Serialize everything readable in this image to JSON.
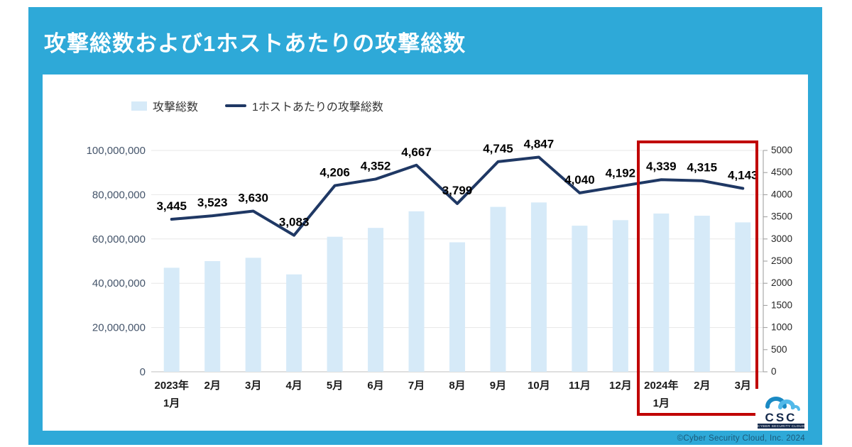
{
  "title": "攻撃総数および1ホストあたりの攻撃総数",
  "legend": {
    "bars_label": "攻撃総数",
    "line_label": "1ホストあたりの攻撃総数"
  },
  "chart_data": {
    "type": "bar+line",
    "title": "攻撃総数および1ホストあたりの攻撃総数",
    "grid": true,
    "legend_position": "top",
    "categories": [
      [
        "2023年",
        "1月"
      ],
      [
        "2月"
      ],
      [
        "3月"
      ],
      [
        "4月"
      ],
      [
        "5月"
      ],
      [
        "6月"
      ],
      [
        "7月"
      ],
      [
        "8月"
      ],
      [
        "9月"
      ],
      [
        "10月"
      ],
      [
        "11月"
      ],
      [
        "12月"
      ],
      [
        "2024年",
        "1月"
      ],
      [
        "2月"
      ],
      [
        "3月"
      ]
    ],
    "series": [
      {
        "name": "攻撃総数",
        "type": "bar",
        "axis": "left",
        "values": [
          47000000,
          50000000,
          51500000,
          44000000,
          61000000,
          65000000,
          72500000,
          58500000,
          74500000,
          76500000,
          66000000,
          68500000,
          71500000,
          70500000,
          67500000
        ]
      },
      {
        "name": "1ホストあたりの攻撃総数",
        "type": "line",
        "axis": "right",
        "values": [
          3445,
          3523,
          3630,
          3083,
          4206,
          4352,
          4667,
          3799,
          4745,
          4847,
          4040,
          4192,
          4339,
          4315,
          4143
        ]
      }
    ],
    "line_labels": [
      "3,445",
      "3,523",
      "3,630",
      "3,083",
      "4,206",
      "4,352",
      "4,667",
      "3,799",
      "4,745",
      "4,847",
      "4,040",
      "4,192",
      "4,339",
      "4,315",
      "4,143"
    ],
    "left_axis": {
      "min": 0,
      "max": 100000000,
      "step": 20000000,
      "labels": [
        "100,000,000",
        "80,000,000",
        "60,000,000",
        "40,000,000",
        "20,000,000",
        "0"
      ]
    },
    "right_axis": {
      "min": 0,
      "max": 5000,
      "step": 500,
      "labels": [
        "5000",
        "4500",
        "4000",
        "3500",
        "3000",
        "2500",
        "2000",
        "1500",
        "1000",
        "500",
        "0"
      ]
    },
    "highlight": {
      "from_category": "2024年1月",
      "to_category": "3月",
      "months": [
        "2024年1月",
        "2月",
        "3月"
      ]
    }
  },
  "footer": {
    "copyright": "©Cyber Security Cloud, Inc. 2024"
  },
  "logo": {
    "text": "CSC",
    "subtext": "CYBER SECURITY CLOUD"
  },
  "colors": {
    "panel_blue": "#2ea9d8",
    "bar_fill": "#d6eaf8",
    "line_navy": "#1f3864",
    "highlight_red": "#c00000",
    "left_axis_text": "#44546a",
    "gridline": "#e7e7e7",
    "logo_cloud_dark": "#1a8ac4",
    "logo_cloud_light": "#52b9e9",
    "logo_navy": "#14294b"
  }
}
